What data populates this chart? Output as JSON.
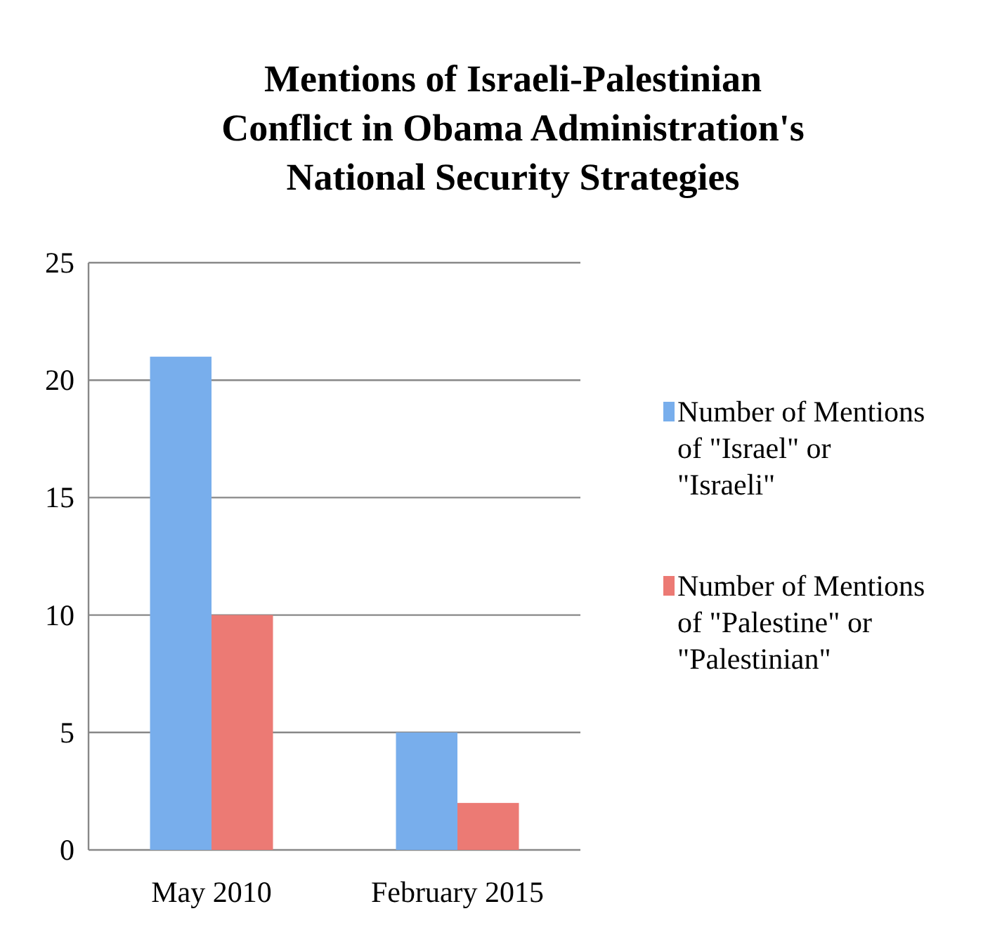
{
  "chart_data": {
    "type": "bar",
    "title": "Mentions of Israeli-Palestinian Conflict in Obama Administration's National Security Strategies",
    "categories": [
      "May 2010",
      "February 2015"
    ],
    "series": [
      {
        "name": "Number of Mentions of \"Israel\" or \"Israeli\"",
        "color": "#78aeec",
        "values": [
          21,
          5
        ]
      },
      {
        "name": "Number of Mentions of \"Palestine\" or \"Palestinian\"",
        "color": "#ec7a74",
        "values": [
          10,
          2
        ]
      }
    ],
    "ylim": [
      0,
      25
    ],
    "yticks": [
      0,
      5,
      10,
      15,
      20,
      25
    ],
    "grid": "y",
    "legend": "right"
  }
}
